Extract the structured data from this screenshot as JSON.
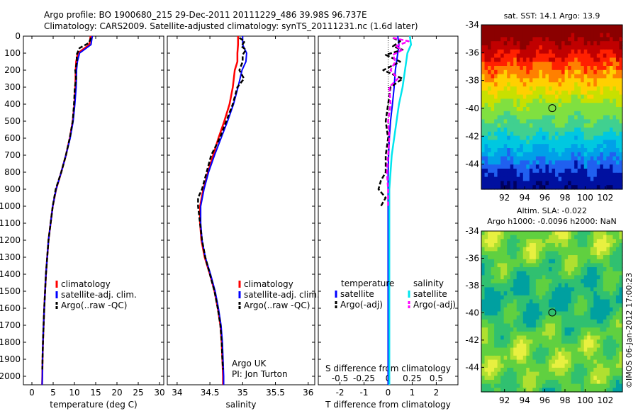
{
  "title": {
    "line1": "Argo profile: BO 1900680_215 29-Dec-2011 20111229_486 39.98S 96.737E",
    "line2": "Climatology: CARS2009. Satellite-adjusted climatology: synTS_20111231.nc (1.6d later)"
  },
  "credit": "©IMOS 06-Jan-2012 17:00:23",
  "depth_ticks": [
    "0",
    "100",
    "200",
    "300",
    "400",
    "500",
    "600",
    "700",
    "800",
    "900",
    "1000",
    "1100",
    "1200",
    "1300",
    "1400",
    "1500",
    "1600",
    "1700",
    "1800",
    "1900",
    "2000"
  ],
  "colors": {
    "climatology": "#ff0000",
    "satellite": "#0000ff",
    "argo": "#000000",
    "salinity_satellite": "#00e5ee",
    "salinity_argo": "#ff00ff"
  },
  "chart_data": [
    {
      "type": "line",
      "id": "temperature",
      "xlabel": "temperature (deg C)",
      "xticks": [
        "0",
        "5",
        "10",
        "15",
        "20",
        "25",
        "30"
      ],
      "xlim": [
        -2,
        31
      ],
      "ylim": [
        0,
        2050
      ],
      "y_reversed": true,
      "legend": [
        "climatology",
        "satellite-adj. clim.",
        "Argo(..raw -QC)"
      ],
      "series": [
        {
          "name": "climatology",
          "depth": [
            0,
            50,
            100,
            150,
            200,
            300,
            400,
            500,
            600,
            700,
            800,
            900,
            1000,
            1100,
            1200,
            1300,
            1400,
            1500,
            1600,
            1700,
            1800,
            1900,
            2000,
            2050
          ],
          "values": [
            13.8,
            13.5,
            10.8,
            10.4,
            10.3,
            10.2,
            10.0,
            9.6,
            8.9,
            8.0,
            6.9,
            5.7,
            4.9,
            4.4,
            3.9,
            3.6,
            3.3,
            3.1,
            2.9,
            2.75,
            2.6,
            2.5,
            2.45,
            2.4
          ]
        },
        {
          "name": "satellite-adj. clim.",
          "depth": [
            0,
            50,
            100,
            150,
            200,
            300,
            400,
            500,
            600,
            700,
            800,
            900,
            1000,
            1100,
            1200,
            1300,
            1400,
            1500,
            1600,
            1700,
            1800,
            1900,
            2000,
            2050
          ],
          "values": [
            14.2,
            13.9,
            11.2,
            10.7,
            10.5,
            10.4,
            10.1,
            9.7,
            9.0,
            8.0,
            6.9,
            5.7,
            4.9,
            4.4,
            3.9,
            3.6,
            3.3,
            3.1,
            2.9,
            2.75,
            2.6,
            2.5,
            2.45,
            2.4
          ]
        },
        {
          "name": "Argo(..raw -QC)",
          "depth": [
            10,
            40,
            70,
            110,
            150,
            200,
            250,
            300,
            400,
            500,
            600,
            700,
            800,
            900,
            1000,
            1100,
            1200,
            1300,
            1400,
            1500,
            1600,
            1700,
            1800,
            1900,
            1960
          ],
          "values": [
            13.9,
            13.4,
            11.2,
            10.5,
            10.6,
            10.2,
            10.4,
            10.1,
            9.9,
            9.6,
            8.9,
            8.0,
            6.9,
            5.6,
            4.9,
            4.4,
            3.9,
            3.6,
            3.3,
            3.1,
            2.9,
            2.75,
            2.6,
            2.5,
            2.45
          ]
        }
      ],
      "annotation": []
    },
    {
      "type": "line",
      "id": "salinity",
      "xlabel": "salinity",
      "xticks": [
        "34",
        "34.5",
        "35",
        "35.5",
        "36"
      ],
      "xlim": [
        33.85,
        36.1
      ],
      "ylim": [
        0,
        2050
      ],
      "y_reversed": true,
      "legend": [
        "climatology",
        "satellite-adj. clim.",
        "Argo(..raw -QC)"
      ],
      "series": [
        {
          "name": "climatology",
          "depth": [
            0,
            50,
            100,
            150,
            200,
            300,
            400,
            500,
            600,
            700,
            800,
            900,
            1000,
            1100,
            1200,
            1300,
            1400,
            1500,
            1600,
            1700,
            1800,
            1900,
            2000,
            2050
          ],
          "values": [
            34.93,
            34.93,
            34.92,
            34.92,
            34.88,
            34.85,
            34.8,
            34.72,
            34.63,
            34.55,
            34.47,
            34.4,
            34.35,
            34.35,
            34.37,
            34.42,
            34.5,
            34.57,
            34.62,
            34.66,
            34.68,
            34.69,
            34.7,
            34.7
          ]
        },
        {
          "name": "satellite-adj. clim.",
          "depth": [
            0,
            50,
            100,
            150,
            200,
            300,
            400,
            500,
            600,
            700,
            800,
            900,
            1000,
            1100,
            1200,
            1300,
            1400,
            1500,
            1600,
            1700,
            1800,
            1900,
            2000,
            2050
          ],
          "values": [
            35.0,
            35.0,
            35.06,
            35.05,
            34.99,
            34.93,
            34.86,
            34.77,
            34.67,
            34.57,
            34.48,
            34.41,
            34.36,
            34.36,
            34.38,
            34.43,
            34.51,
            34.58,
            34.63,
            34.67,
            34.69,
            34.7,
            34.71,
            34.71
          ]
        },
        {
          "name": "Argo(..raw -QC)",
          "depth": [
            10,
            30,
            60,
            80,
            110,
            150,
            200,
            250,
            300,
            400,
            500,
            600,
            700,
            800,
            900,
            950,
            1000,
            1100,
            1200,
            1300,
            1400,
            1500,
            1600,
            1700,
            1800,
            1900,
            1960
          ],
          "values": [
            34.95,
            35.03,
            34.98,
            35.05,
            35.0,
            35.0,
            34.95,
            35.02,
            34.92,
            34.85,
            34.75,
            34.65,
            34.52,
            34.45,
            34.38,
            34.32,
            34.32,
            34.35,
            34.38,
            34.43,
            34.5,
            34.57,
            34.62,
            34.66,
            34.68,
            34.69,
            34.7
          ]
        }
      ],
      "annotation": [
        "Argo UK",
        "PI: Jon Turton"
      ]
    },
    {
      "type": "line",
      "id": "differences",
      "xlabel": "T difference from climatology",
      "xlabel_top": "S difference from climatology",
      "xticks": [
        "-2",
        "-1",
        "0",
        "1",
        "2"
      ],
      "xticks_top": [
        "-0.5",
        "-0.25",
        "0",
        "0.25",
        "0.5"
      ],
      "xlim": [
        -2.9,
        2.9
      ],
      "ylim": [
        0,
        2050
      ],
      "y_reversed": true,
      "legend_temperature_title": "temperature",
      "legend_salinity_title": "salinity",
      "legend_temperature": [
        "satellite",
        "Argo(-adj)"
      ],
      "legend_salinity": [
        "satellite",
        "Argo(-adj)"
      ],
      "series": [
        {
          "name": "temperature satellite",
          "depth": [
            0,
            50,
            100,
            200,
            300,
            400,
            500,
            600,
            700,
            800,
            900,
            1000,
            1100,
            1200,
            1400,
            1600,
            1800,
            2050
          ],
          "values": [
            0.4,
            0.45,
            0.4,
            0.3,
            0.25,
            0.18,
            0.1,
            0.05,
            0.02,
            0.0,
            0.0,
            0.0,
            0.0,
            0.0,
            0.0,
            0.0,
            0.0,
            0.0
          ]
        },
        {
          "name": "temperature Argo(-adj)",
          "depth": [
            10,
            30,
            60,
            80,
            110,
            150,
            200,
            250,
            300,
            400,
            500,
            600,
            700,
            800,
            850,
            900,
            950,
            1000
          ],
          "values": [
            0.2,
            0.5,
            0.2,
            0.6,
            -0.1,
            0.5,
            -0.2,
            0.6,
            0.1,
            0.0,
            -0.1,
            0.0,
            -0.1,
            -0.1,
            -0.3,
            -0.4,
            -0.1,
            -0.3
          ]
        },
        {
          "name": "salinity satellite",
          "depth": [
            0,
            50,
            100,
            150,
            200,
            300,
            400,
            500,
            600,
            700,
            800,
            900,
            1000,
            1200,
            1400,
            1600,
            1800,
            2050
          ],
          "values": [
            0.9,
            0.95,
            0.8,
            0.75,
            0.7,
            0.6,
            0.45,
            0.35,
            0.25,
            0.15,
            0.1,
            0.05,
            0.05,
            0.05,
            0.05,
            0.05,
            0.05,
            0.05
          ]
        },
        {
          "name": "salinity Argo(-adj)",
          "depth": [
            10,
            30,
            60,
            80,
            110,
            150,
            200,
            250,
            300,
            400,
            500,
            600,
            700,
            800,
            900,
            1000
          ],
          "values": [
            0.2,
            0.85,
            0.3,
            0.6,
            0.2,
            0.3,
            0.1,
            0.4,
            0.05,
            0.1,
            0.0,
            0.05,
            0.0,
            -0.05,
            0.0,
            0.0
          ]
        }
      ]
    },
    {
      "type": "heatmap",
      "id": "sst-map",
      "title": "sat. SST: 14.1  Argo: 13.9",
      "xticks": [
        "92",
        "94",
        "96",
        "98",
        "100",
        "102"
      ],
      "yticks": [
        "-34",
        "-36",
        "-38",
        "-40",
        "-42",
        "-44"
      ],
      "xlim": [
        89.7,
        103.7
      ],
      "ylim": [
        -45.8,
        -34.0
      ],
      "marker": {
        "lon": 96.737,
        "lat": -39.98
      },
      "colorscale": [
        {
          "lat": -34.0,
          "color": "#8b0000"
        },
        {
          "lat": -35.2,
          "color": "#c00000"
        },
        {
          "lat": -36.2,
          "color": "#ff2000"
        },
        {
          "lat": -37.0,
          "color": "#ff8000"
        },
        {
          "lat": -37.8,
          "color": "#ffd000"
        },
        {
          "lat": -38.7,
          "color": "#c8e000"
        },
        {
          "lat": -39.6,
          "color": "#80e040"
        },
        {
          "lat": -40.8,
          "color": "#40d090"
        },
        {
          "lat": -41.8,
          "color": "#00c8e0"
        },
        {
          "lat": -42.8,
          "color": "#00a0e8"
        },
        {
          "lat": -43.7,
          "color": "#2060f0"
        },
        {
          "lat": -44.5,
          "color": "#0010a0"
        },
        {
          "lat": -45.8,
          "color": "#000060"
        }
      ]
    },
    {
      "type": "heatmap",
      "id": "sla-map",
      "title": "Altim. SLA: -0.022",
      "subtitle": "Argo h1000: -0.0096 h2000: NaN",
      "xticks": [
        "92",
        "94",
        "96",
        "98",
        "100",
        "102"
      ],
      "yticks": [
        "-34",
        "-36",
        "-38",
        "-40",
        "-42",
        "-44"
      ],
      "xlim": [
        89.7,
        103.7
      ],
      "ylim": [
        -45.8,
        -34.0
      ],
      "marker": {
        "lon": 96.737,
        "lat": -39.98
      },
      "colorscale": [
        {
          "v": 0.0,
          "color": "#00a0a0"
        },
        {
          "v": 0.3,
          "color": "#30c070"
        },
        {
          "v": 0.5,
          "color": "#60d040"
        },
        {
          "v": 0.7,
          "color": "#b0e030"
        },
        {
          "v": 0.85,
          "color": "#e8f040"
        },
        {
          "v": 1.0,
          "color": "#fff070"
        }
      ]
    }
  ]
}
